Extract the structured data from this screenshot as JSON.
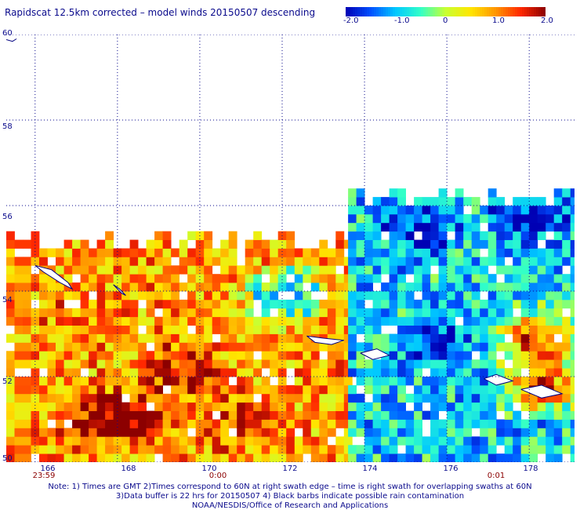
{
  "title": "Rapidscat 12.5km corrected – model winds 20150507 descending",
  "colorbar": {
    "ticks": [
      "-2.0",
      "-1.0",
      "0",
      "1.0",
      "2.0"
    ],
    "min": -2.0,
    "max": 2.0,
    "colors": [
      "#0000b4",
      "#0050ff",
      "#00c8ff",
      "#32ffc8",
      "#c8ff32",
      "#ffe600",
      "#ff9600",
      "#ff2800",
      "#8c0000"
    ]
  },
  "time_labels": [
    "23:59",
    "0:00",
    "0:01"
  ],
  "notes": [
    "Note: 1) Times are GMT 2)Times correspond to 60N at right swath edge – time is right swath for overlapping swaths at 60N",
    "3)Data buffer is 22 hrs for 20150507 4) Black barbs indicate possible rain contamination",
    "NOAA/NESDIS/Office of Research and Applications"
  ],
  "chart_data": {
    "type": "heatmap",
    "title": "Rapidscat 12.5km corrected – model winds 20150507 descending",
    "xlabel": "",
    "ylabel": "",
    "x_range": [
      165.3,
      179.1
    ],
    "y_range": [
      50.0,
      60.0
    ],
    "x_ticks": [
      "166",
      "168",
      "170",
      "172",
      "174",
      "176",
      "178"
    ],
    "y_ticks": [
      "50",
      "52",
      "54",
      "56",
      "58",
      "60"
    ],
    "grid": true,
    "value_range": [
      -2.0,
      2.0
    ],
    "cell_deg": 0.2,
    "regions": [
      {
        "name": "swath-west",
        "lon": [
          165.3,
          173.6
        ],
        "lat": [
          50.0,
          55.4
        ],
        "typical": 0.9
      },
      {
        "name": "swath-east",
        "lon": [
          173.6,
          179.1
        ],
        "lat": [
          50.0,
          56.4
        ],
        "typical": -0.9
      }
    ],
    "anomalies": [
      {
        "lon": 167.4,
        "lat": 50.9,
        "value": 2.0
      },
      {
        "lon": 168.5,
        "lat": 51.0,
        "value": 2.0
      },
      {
        "lon": 169.5,
        "lat": 52.0,
        "value": 1.8
      },
      {
        "lon": 170.9,
        "lat": 50.9,
        "value": 1.6
      },
      {
        "lon": 172.0,
        "lat": 53.8,
        "value": -1.8
      },
      {
        "lon": 175.2,
        "lat": 55.4,
        "value": -1.9
      },
      {
        "lon": 175.6,
        "lat": 52.7,
        "value": -1.9
      },
      {
        "lon": 177.9,
        "lat": 55.6,
        "value": -2.0
      },
      {
        "lon": 178.0,
        "lat": 52.8,
        "value": 1.8
      },
      {
        "lon": 178.2,
        "lat": 51.7,
        "value": 1.9
      },
      {
        "lon": 166.8,
        "lat": 53.2,
        "value": 1.2
      }
    ]
  }
}
